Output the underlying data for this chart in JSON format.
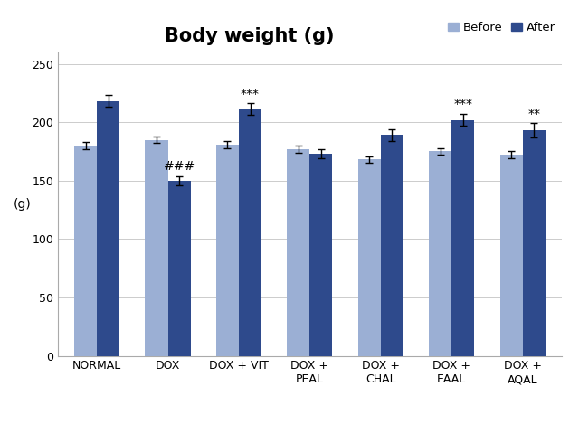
{
  "title": "Body weight (g)",
  "ylabel": "(g)",
  "ylim": [
    0,
    260
  ],
  "yticks": [
    0,
    50,
    100,
    150,
    200,
    250
  ],
  "categories": [
    "NORMAL",
    "DOX",
    "DOX + VIT",
    "DOX +\nPEAL",
    "DOX +\nCHAL",
    "DOX +\nEAAL",
    "DOX +\nAQAL"
  ],
  "before_values": [
    180,
    185,
    181,
    177,
    168,
    175,
    172
  ],
  "after_values": [
    218,
    150,
    211,
    173,
    189,
    202,
    193
  ],
  "before_errors": [
    3,
    3,
    3,
    3,
    3,
    3,
    3
  ],
  "after_errors": [
    5,
    4,
    5,
    4,
    5,
    5,
    6
  ],
  "before_color": "#9BAFD4",
  "after_color": "#2E4A8C",
  "bar_width": 0.32,
  "legend_labels": [
    "Before",
    "After"
  ],
  "background_color": "#FFFFFF",
  "grid_color": "#CCCCCC",
  "title_fontsize": 15,
  "tick_fontsize": 9,
  "legend_fontsize": 9.5,
  "annotation_fontsize": 10
}
